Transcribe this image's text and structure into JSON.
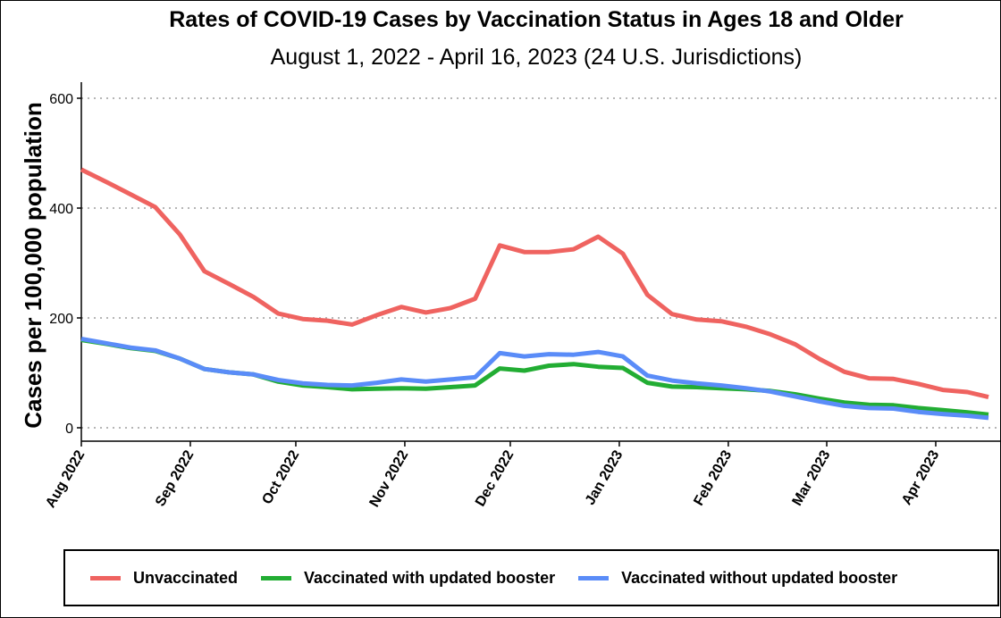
{
  "chart_data": {
    "type": "line",
    "title": "Rates of COVID-19 Cases by Vaccination Status in Ages 18 and Older",
    "subtitle": "August 1, 2022 - April 16, 2023 (24 U.S. Jurisdictions)",
    "ylabel": "Cases per 100,000 population",
    "xlabel": "",
    "ylim": [
      0,
      630
    ],
    "yticks": [
      0,
      200,
      400,
      600
    ],
    "xlim": [
      "2022-08-01",
      "2023-04-16"
    ],
    "xticks": [
      {
        "date": "2022-08-01",
        "label": "Aug 2022"
      },
      {
        "date": "2022-09-01",
        "label": "Sep 2022"
      },
      {
        "date": "2022-10-01",
        "label": "Oct 2022"
      },
      {
        "date": "2022-11-01",
        "label": "Nov 2022"
      },
      {
        "date": "2022-12-01",
        "label": "Dec 2022"
      },
      {
        "date": "2023-01-01",
        "label": "Jan 2023"
      },
      {
        "date": "2023-02-01",
        "label": "Feb 2023"
      },
      {
        "date": "2023-03-01",
        "label": "Mar 2023"
      },
      {
        "date": "2023-04-01",
        "label": "Apr 2023"
      }
    ],
    "grid": "horizontal dotted",
    "legend_position": "bottom",
    "x": [
      "2022-08-01",
      "2022-08-08",
      "2022-08-15",
      "2022-08-22",
      "2022-08-29",
      "2022-09-05",
      "2022-09-12",
      "2022-09-19",
      "2022-09-26",
      "2022-10-03",
      "2022-10-10",
      "2022-10-17",
      "2022-10-24",
      "2022-10-31",
      "2022-11-07",
      "2022-11-14",
      "2022-11-21",
      "2022-11-28",
      "2022-12-05",
      "2022-12-12",
      "2022-12-19",
      "2022-12-26",
      "2023-01-02",
      "2023-01-09",
      "2023-01-16",
      "2023-01-23",
      "2023-01-30",
      "2023-02-06",
      "2023-02-13",
      "2023-02-20",
      "2023-02-27",
      "2023-03-06",
      "2023-03-13",
      "2023-03-20",
      "2023-03-27",
      "2023-04-03",
      "2023-04-10",
      "2023-04-16"
    ],
    "series": [
      {
        "name": "Unvaccinated",
        "color": "#ef6360",
        "values": [
          470,
          448,
          425,
          402,
          352,
          285,
          262,
          238,
          208,
          198,
          195,
          188,
          205,
          220,
          210,
          218,
          235,
          332,
          320,
          320,
          325,
          348,
          317,
          242,
          207,
          197,
          194,
          184,
          170,
          152,
          125,
          102,
          90,
          89,
          80,
          69,
          65,
          56
        ]
      },
      {
        "name": "Vaccinated with updated booster",
        "color": "#22ad33",
        "values": [
          160,
          153,
          145,
          140,
          126,
          107,
          101,
          97,
          84,
          77,
          74,
          70,
          71,
          72,
          71,
          74,
          77,
          108,
          104,
          113,
          116,
          111,
          109,
          82,
          75,
          74,
          72,
          70,
          67,
          61,
          53,
          46,
          42,
          41,
          36,
          32,
          28,
          24
        ]
      },
      {
        "name": "Vaccinated without updated booster",
        "color": "#5a8cf8",
        "values": [
          162,
          154,
          146,
          141,
          126,
          107,
          101,
          97,
          87,
          81,
          78,
          77,
          82,
          88,
          84,
          88,
          92,
          136,
          130,
          134,
          133,
          138,
          130,
          95,
          86,
          81,
          77,
          72,
          66,
          57,
          48,
          40,
          36,
          35,
          29,
          25,
          22,
          18
        ]
      }
    ]
  }
}
